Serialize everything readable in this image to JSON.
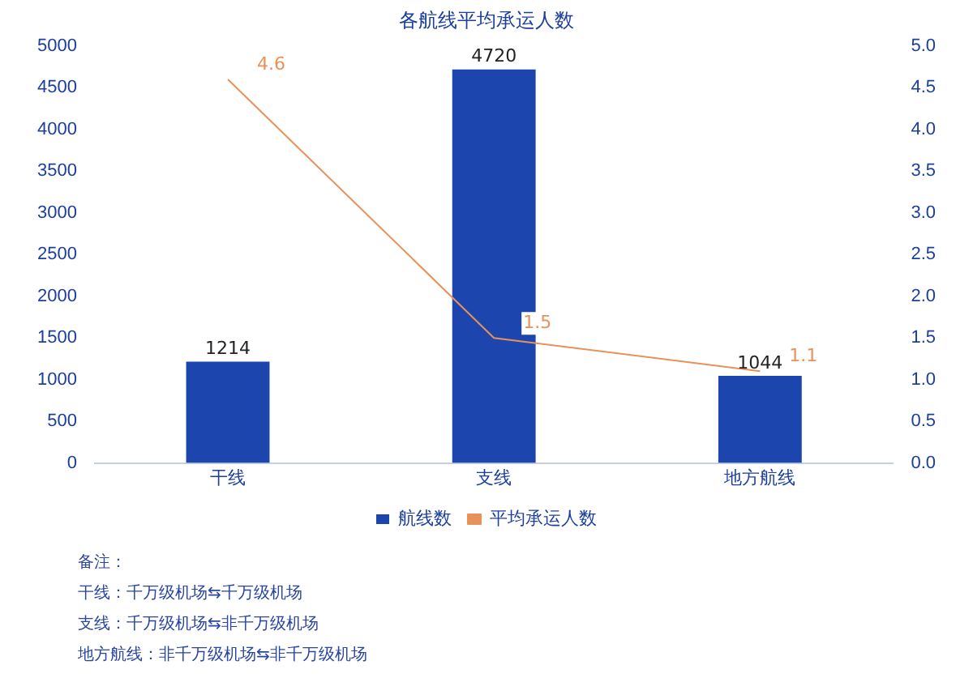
{
  "chart_data": {
    "type": "bar",
    "title": "各航线平均承运人数",
    "categories": [
      "干线",
      "支线",
      "地方航线"
    ],
    "series": [
      {
        "name": "航线数",
        "color": "#1c46ae",
        "values": [
          1214,
          4720,
          1044
        ]
      },
      {
        "name": "平均承运人数",
        "type": "line",
        "axis": "y2",
        "color": "#e9915a",
        "values": [
          4.6,
          1.5,
          1.1
        ]
      }
    ],
    "ylim": [
      0,
      5000
    ],
    "yticks": [
      0,
      500,
      1000,
      1500,
      2000,
      2500,
      3000,
      3500,
      4000,
      4500,
      5000
    ],
    "y2lim": [
      0,
      5
    ],
    "y2ticks": [
      {
        "value": 0,
        "label": "0.0"
      },
      {
        "value": 0.5,
        "label": "0.5"
      },
      {
        "value": 1,
        "label": "1.0"
      },
      {
        "value": 1.5,
        "label": "1.5"
      },
      {
        "value": 2,
        "label": "2.0"
      },
      {
        "value": 2.5,
        "label": "2.5"
      },
      {
        "value": 3,
        "label": "3.0"
      },
      {
        "value": 3.5,
        "label": "3.5"
      },
      {
        "value": 4,
        "label": "4.0"
      },
      {
        "value": 4.5,
        "label": "4.5"
      },
      {
        "value": 5,
        "label": "5.0"
      }
    ],
    "grid": false,
    "legend": "bottom",
    "data_labels": true,
    "marker": "none",
    "annotations": [
      "备注：",
      "干线：千万级机场⇆千万级机场",
      "支线：千万级机场⇆非千万级机场",
      "地方航线：非千万级机场⇆非千万级机场"
    ]
  }
}
